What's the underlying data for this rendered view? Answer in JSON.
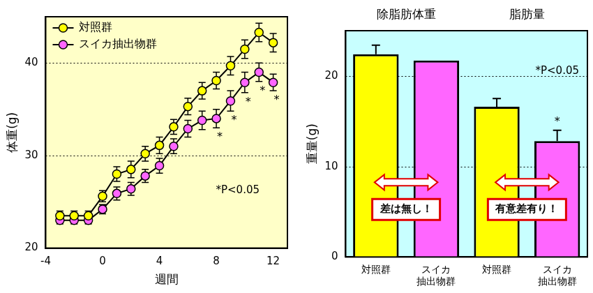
{
  "chart_data": [
    {
      "type": "line",
      "x_label": "週間",
      "y_label": "体重(g)",
      "x": [
        -3,
        -2,
        -1,
        0,
        1,
        2,
        3,
        4,
        5,
        6,
        7,
        8,
        9,
        10,
        11,
        12
      ],
      "series": [
        {
          "name": "対照群",
          "color": "#ffff00",
          "marker": "circle",
          "values": [
            23.5,
            23.5,
            23.5,
            25.6,
            28.0,
            28.5,
            30.2,
            31.1,
            33.1,
            35.3,
            37.0,
            38.1,
            39.7,
            41.5,
            43.3,
            42.2
          ],
          "errors": [
            0.5,
            0.5,
            0.5,
            0.6,
            0.8,
            0.9,
            0.8,
            0.9,
            0.8,
            0.9,
            0.9,
            0.9,
            1.0,
            1.0,
            1.0,
            1.0
          ]
        },
        {
          "name": "スイカ抽出物群",
          "color": "#ff66ff",
          "marker": "circle",
          "values": [
            23.0,
            23.0,
            23.0,
            24.2,
            25.9,
            26.4,
            27.8,
            28.9,
            31.0,
            32.9,
            33.8,
            34.0,
            35.9,
            37.9,
            39.0,
            37.9
          ],
          "errors": [
            0.4,
            0.4,
            0.4,
            0.5,
            0.7,
            0.7,
            0.7,
            0.8,
            0.8,
            0.9,
            1.0,
            1.0,
            1.1,
            1.1,
            1.0,
            0.9
          ]
        }
      ],
      "xlim": [
        -4,
        13
      ],
      "xticks": [
        -4,
        0,
        4,
        8,
        12
      ],
      "ylim": [
        20,
        45
      ],
      "yticks": [
        20,
        30,
        40
      ],
      "grid": true,
      "legend": "upper left",
      "annotations": [
        {
          "text": "*",
          "x": 8,
          "series": "スイカ抽出物群"
        },
        {
          "text": "*",
          "x": 9,
          "series": "スイカ抽出物群"
        },
        {
          "text": "*",
          "x": 10,
          "series": "スイカ抽出物群"
        },
        {
          "text": "*",
          "x": 11,
          "series": "スイカ抽出物群"
        },
        {
          "text": "*",
          "x": 12,
          "series": "スイカ抽出物群"
        },
        {
          "text": "*P<0.05"
        }
      ]
    },
    {
      "type": "bar",
      "y_label": "重量(g)",
      "group_labels": [
        "除脂肪体重",
        "脂肪量"
      ],
      "comparisons": [
        "差は無し！",
        "有意差有り！"
      ],
      "categories": [
        "対照群",
        "スイカ\n抽出物群",
        "対照群",
        "スイカ\n抽出物群"
      ],
      "values": [
        22.4,
        21.7,
        16.6,
        12.8
      ],
      "errors": [
        1.0,
        null,
        0.9,
        1.2
      ],
      "colors": [
        "#ffff00",
        "#ff66ff",
        "#ffff00",
        "#ff66ff"
      ],
      "ylim": [
        0,
        25
      ],
      "yticks": [
        0,
        10,
        20
      ],
      "grid": true,
      "annotations": [
        {
          "text": "*",
          "index": 3
        },
        {
          "text": "*P<0.05"
        }
      ]
    }
  ]
}
